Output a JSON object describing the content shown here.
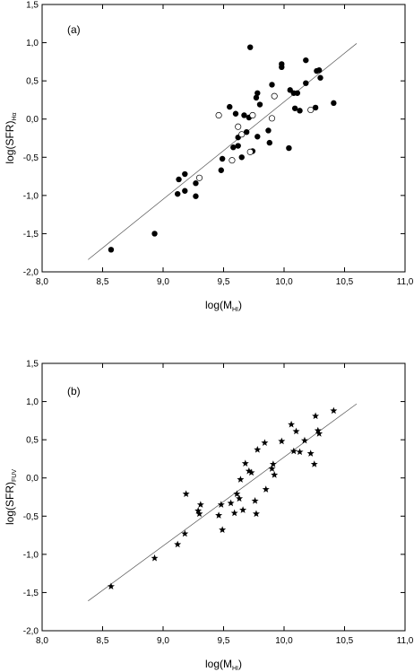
{
  "chart_data": [
    {
      "type": "scatter",
      "panel_label": "(a)",
      "xlabel": "log(M",
      "xlabel_sub": "HI",
      "xlabel_end": ")",
      "ylabel": "log(SFR)",
      "ylabel_sub": "Hα",
      "xlim": [
        8.0,
        11.0
      ],
      "ylim": [
        -2.0,
        1.5
      ],
      "xticks": [
        "8,0",
        "8,5",
        "9,0",
        "9,5",
        "10,0",
        "10,5",
        "11,0"
      ],
      "yticks": [
        "-2,0",
        "-1,5",
        "-1,0",
        "-0,5",
        "0,0",
        "0,5",
        "1,0",
        "1,5"
      ],
      "grid": false,
      "fit_line": {
        "x": [
          8.38,
          10.6
        ],
        "y": [
          -1.84,
          0.99
        ]
      },
      "series": [
        {
          "marker": "filled-circle",
          "points": [
            [
              8.57,
              -1.71
            ],
            [
              8.93,
              -1.5
            ],
            [
              9.12,
              -0.98
            ],
            [
              9.13,
              -0.79
            ],
            [
              9.18,
              -0.72
            ],
            [
              9.18,
              -0.94
            ],
            [
              9.27,
              -1.01
            ],
            [
              9.27,
              -0.84
            ],
            [
              9.48,
              -0.67
            ],
            [
              9.49,
              -0.52
            ],
            [
              9.55,
              0.16
            ],
            [
              9.58,
              -0.37
            ],
            [
              9.6,
              0.07
            ],
            [
              9.62,
              -0.24
            ],
            [
              9.62,
              -0.35
            ],
            [
              9.65,
              -0.5
            ],
            [
              9.67,
              0.05
            ],
            [
              9.69,
              -0.17
            ],
            [
              9.71,
              0.02
            ],
            [
              9.72,
              0.94
            ],
            [
              9.74,
              -0.42
            ],
            [
              9.77,
              0.28
            ],
            [
              9.78,
              0.34
            ],
            [
              9.8,
              0.19
            ],
            [
              9.78,
              -0.23
            ],
            [
              9.87,
              -0.15
            ],
            [
              9.88,
              -0.31
            ],
            [
              9.9,
              0.45
            ],
            [
              9.98,
              0.72
            ],
            [
              9.98,
              0.68
            ],
            [
              10.04,
              -0.38
            ],
            [
              10.05,
              0.38
            ],
            [
              10.08,
              0.34
            ],
            [
              10.09,
              0.14
            ],
            [
              10.11,
              0.34
            ],
            [
              10.13,
              0.11
            ],
            [
              10.18,
              0.77
            ],
            [
              10.18,
              0.47
            ],
            [
              10.26,
              0.15
            ],
            [
              10.27,
              0.63
            ],
            [
              10.29,
              0.64
            ],
            [
              10.3,
              0.54
            ],
            [
              10.41,
              0.21
            ]
          ]
        },
        {
          "marker": "open-circle",
          "points": [
            [
              9.3,
              -0.77
            ],
            [
              9.46,
              0.05
            ],
            [
              9.57,
              -0.54
            ],
            [
              9.62,
              -0.1
            ],
            [
              9.65,
              -0.2
            ],
            [
              9.72,
              -0.43
            ],
            [
              9.74,
              0.05
            ],
            [
              9.9,
              0.01
            ],
            [
              9.92,
              0.3
            ],
            [
              10.22,
              0.12
            ]
          ]
        }
      ]
    },
    {
      "type": "scatter",
      "panel_label": "(b)",
      "xlabel": "log(M",
      "xlabel_sub": "HI",
      "xlabel_end": ")",
      "ylabel": "log(SFR)",
      "ylabel_sub": "FUV",
      "xlim": [
        8.0,
        11.0
      ],
      "ylim": [
        -2.0,
        1.5
      ],
      "xticks": [
        "8,0",
        "8,5",
        "9,0",
        "9,5",
        "10,0",
        "10,5",
        "11,0"
      ],
      "yticks": [
        "-2,0",
        "-1,5",
        "-1,0",
        "-0,5",
        "0,0",
        "0,5",
        "1,0",
        "1,5"
      ],
      "grid": false,
      "fit_line": {
        "x": [
          8.38,
          10.6
        ],
        "y": [
          -1.61,
          0.97
        ]
      },
      "series": [
        {
          "marker": "star",
          "points": [
            [
              8.57,
              -1.42
            ],
            [
              8.93,
              -1.05
            ],
            [
              9.12,
              -0.87
            ],
            [
              9.18,
              -0.73
            ],
            [
              9.19,
              -0.21
            ],
            [
              9.29,
              -0.43
            ],
            [
              9.3,
              -0.47
            ],
            [
              9.31,
              -0.35
            ],
            [
              9.46,
              -0.49
            ],
            [
              9.48,
              -0.35
            ],
            [
              9.49,
              -0.68
            ],
            [
              9.56,
              -0.33
            ],
            [
              9.59,
              -0.46
            ],
            [
              9.61,
              -0.21
            ],
            [
              9.63,
              -0.27
            ],
            [
              9.64,
              -0.02
            ],
            [
              9.66,
              -0.42
            ],
            [
              9.68,
              0.19
            ],
            [
              9.71,
              0.09
            ],
            [
              9.73,
              0.07
            ],
            [
              9.76,
              -0.3
            ],
            [
              9.77,
              -0.47
            ],
            [
              9.78,
              0.37
            ],
            [
              9.84,
              0.46
            ],
            [
              9.85,
              -0.15
            ],
            [
              9.9,
              0.12
            ],
            [
              9.91,
              0.18
            ],
            [
              9.92,
              0.04
            ],
            [
              9.98,
              0.48
            ],
            [
              10.06,
              0.7
            ],
            [
              10.08,
              0.35
            ],
            [
              10.1,
              0.61
            ],
            [
              10.13,
              0.34
            ],
            [
              10.17,
              0.49
            ],
            [
              10.22,
              0.32
            ],
            [
              10.25,
              0.18
            ],
            [
              10.26,
              0.81
            ],
            [
              10.28,
              0.62
            ],
            [
              10.29,
              0.58
            ],
            [
              10.41,
              0.88
            ]
          ]
        }
      ]
    }
  ]
}
